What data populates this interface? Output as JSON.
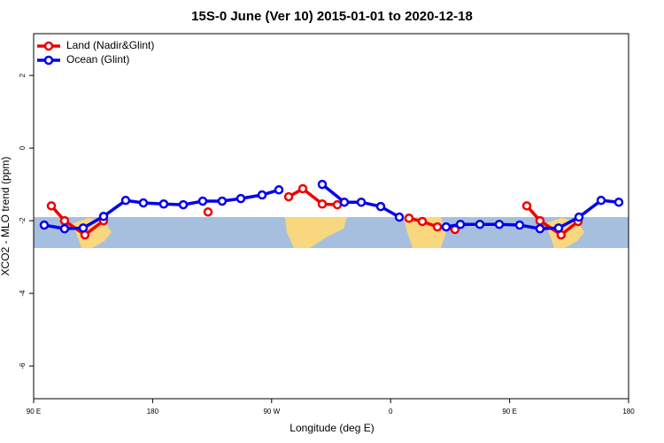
{
  "chart_data": {
    "type": "line",
    "title": "15S-0 June (Ver 10)   2015-01-01 to 2020-12-18",
    "xlabel": "Longitude (deg E)",
    "ylabel": "XCO2 - MLO trend (ppm)",
    "xlim": [
      90,
      540
    ],
    "xticks": [
      {
        "value": 90,
        "label": "90 E"
      },
      180,
      {
        "value": 270,
        "label": "90 W"
      },
      {
        "value": 360,
        "label": "0"
      },
      {
        "value": 450,
        "label": "90 E"
      },
      {
        "value": 540,
        "label": "180"
      }
    ],
    "ylim": [
      -6.9,
      3.15
    ],
    "yticks": [
      -6,
      -4,
      -2,
      0,
      2
    ],
    "legend": "top-left",
    "series": [
      {
        "name": "Land (Nadir&Glint)",
        "color": "#ee0000",
        "x": [
          103.4,
          113.4,
          128.8,
          142.9,
          null,
          221.9,
          null,
          282.9,
          293.6,
          308.3,
          319.7,
          null,
          373.9,
          384.0,
          395.4,
          408.7,
          null,
          463.0,
          473.0,
          489.0,
          501.8
        ],
        "values": [
          -1.59,
          -2.0,
          -2.39,
          -2.0,
          null,
          -1.76,
          null,
          -1.34,
          -1.12,
          -1.54,
          -1.56,
          null,
          -1.93,
          -2.02,
          -2.17,
          -2.24,
          null,
          -1.59,
          -2.0,
          -2.39,
          -2.02
        ]
      },
      {
        "name": "Ocean (Glint)",
        "color": "#0000ee",
        "x": [
          98.0,
          113.4,
          127.5,
          142.9,
          159.6,
          173.0,
          188.4,
          203.2,
          217.9,
          232.6,
          246.7,
          262.8,
          275.5,
          null,
          308.3,
          325.0,
          337.8,
          352.5,
          366.6,
          null,
          402.0,
          412.8,
          427.5,
          442.2,
          457.6,
          473.0,
          487.1,
          502.5,
          519.2,
          532.6
        ],
        "values": [
          -2.12,
          -2.22,
          -2.2,
          -1.88,
          -1.44,
          -1.51,
          -1.54,
          -1.56,
          -1.46,
          -1.46,
          -1.39,
          -1.29,
          -1.15,
          null,
          -1.0,
          -1.49,
          -1.49,
          -1.61,
          -1.9,
          null,
          -2.17,
          -2.1,
          -2.1,
          -2.1,
          -2.12,
          -2.22,
          -2.2,
          -1.9,
          -1.44,
          -1.49
        ]
      }
    ]
  }
}
